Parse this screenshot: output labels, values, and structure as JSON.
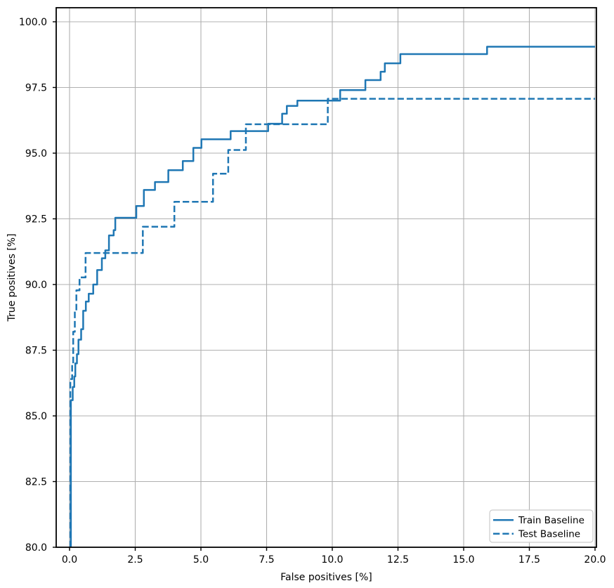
{
  "chart_data": {
    "type": "line",
    "title": "",
    "xlabel": "False positives [%]",
    "ylabel": "True positives [%]",
    "xlim": [
      -0.5,
      20
    ],
    "ylim": [
      80,
      100.5
    ],
    "grid": true,
    "legend_position": "lower right",
    "colors": {
      "line": "#1f77b4",
      "grid": "#b0b0b0",
      "spine": "#000000",
      "legend_border": "#cccccc",
      "background": "#ffffff"
    },
    "x_ticks": [
      {
        "label": "0.0",
        "value": 0
      },
      {
        "label": "2.5",
        "value": 2.5
      },
      {
        "label": "5.0",
        "value": 5
      },
      {
        "label": "7.5",
        "value": 7.5
      },
      {
        "label": "10.0",
        "value": 10
      },
      {
        "label": "12.5",
        "value": 12.5
      },
      {
        "label": "15.0",
        "value": 15
      },
      {
        "label": "17.5",
        "value": 17.5
      },
      {
        "label": "20.0",
        "value": 20
      }
    ],
    "y_ticks": [
      {
        "label": "80.0",
        "value": 80
      },
      {
        "label": "82.5",
        "value": 82.5
      },
      {
        "label": "85.0",
        "value": 85
      },
      {
        "label": "87.5",
        "value": 87.5
      },
      {
        "label": "90.0",
        "value": 90
      },
      {
        "label": "92.5",
        "value": 92.5
      },
      {
        "label": "95.0",
        "value": 95
      },
      {
        "label": "97.5",
        "value": 97.5
      },
      {
        "label": "100.0",
        "value": 100
      }
    ],
    "series": [
      {
        "name": "Train Baseline",
        "style": "solid",
        "drawstyle": "steps-post",
        "points": [
          [
            0.05,
            80
          ],
          [
            0.05,
            85.6
          ],
          [
            0.12,
            86.1
          ],
          [
            0.18,
            86.5
          ],
          [
            0.22,
            87.0
          ],
          [
            0.28,
            87.35
          ],
          [
            0.34,
            87.9
          ],
          [
            0.44,
            88.3
          ],
          [
            0.52,
            89.0
          ],
          [
            0.62,
            89.35
          ],
          [
            0.73,
            89.65
          ],
          [
            0.9,
            90.0
          ],
          [
            1.05,
            90.55
          ],
          [
            1.23,
            91.0
          ],
          [
            1.36,
            91.3
          ],
          [
            1.5,
            91.87
          ],
          [
            1.68,
            92.07
          ],
          [
            1.74,
            92.54
          ],
          [
            2.54,
            92.99
          ],
          [
            2.83,
            93.6
          ],
          [
            3.25,
            93.9
          ],
          [
            3.76,
            94.35
          ],
          [
            4.31,
            94.7
          ],
          [
            4.71,
            95.2
          ],
          [
            5.02,
            95.53
          ],
          [
            6.13,
            95.84
          ],
          [
            7.56,
            96.12
          ],
          [
            8.09,
            96.5
          ],
          [
            8.27,
            96.8
          ],
          [
            8.67,
            97.0
          ],
          [
            10.3,
            97.4
          ],
          [
            11.26,
            97.78
          ],
          [
            11.84,
            98.1
          ],
          [
            12.0,
            98.42
          ],
          [
            12.59,
            98.77
          ],
          [
            15.89,
            99.05
          ],
          [
            20.0,
            99.05
          ]
        ]
      },
      {
        "name": "Test Baseline",
        "style": "dashed",
        "drawstyle": "steps-post",
        "points": [
          [
            0.03,
            80
          ],
          [
            0.03,
            86.4
          ],
          [
            0.1,
            87.0
          ],
          [
            0.14,
            88.2
          ],
          [
            0.2,
            89.0
          ],
          [
            0.26,
            89.78
          ],
          [
            0.38,
            90.27
          ],
          [
            0.61,
            91.2
          ],
          [
            2.79,
            92.2
          ],
          [
            3.99,
            93.15
          ],
          [
            5.46,
            94.22
          ],
          [
            6.04,
            95.12
          ],
          [
            6.71,
            96.1
          ],
          [
            9.83,
            97.07
          ],
          [
            20.0,
            97.07
          ]
        ]
      }
    ]
  }
}
